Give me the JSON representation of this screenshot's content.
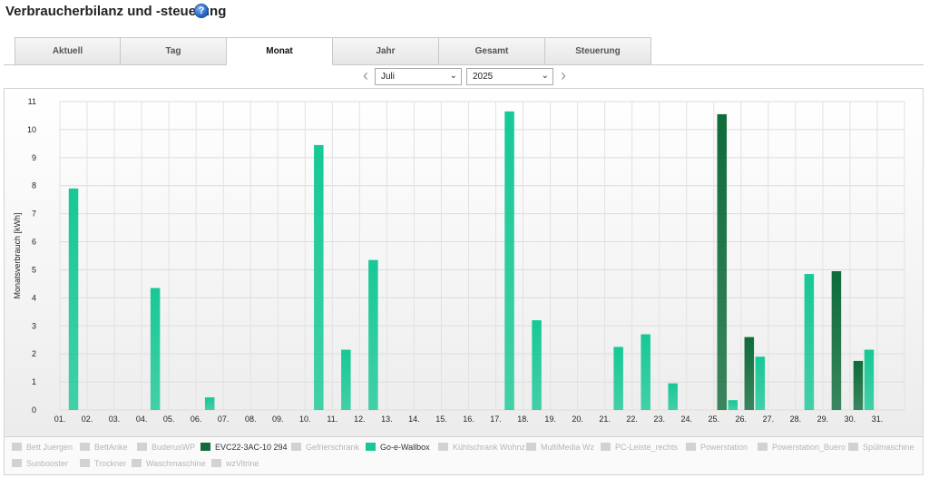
{
  "header": {
    "title": "Verbraucherbilanz und -steuerung",
    "help_glyph": "?"
  },
  "tabs": [
    {
      "label": "Aktuell",
      "active": false
    },
    {
      "label": "Tag",
      "active": false
    },
    {
      "label": "Monat",
      "active": true
    },
    {
      "label": "Jahr",
      "active": false
    },
    {
      "label": "Gesamt",
      "active": false
    },
    {
      "label": "Steuerung",
      "active": false
    }
  ],
  "period": {
    "month": "Juli",
    "year": "2025",
    "prev_glyph": "‹",
    "next_glyph": "›",
    "caret": "⌄"
  },
  "colors": {
    "evc": "#0e6b3a",
    "goe": "#17c896",
    "inactive": "#d2d2d2"
  },
  "chart_data": {
    "type": "bar",
    "ylabel": "Monatsverbrauch [kWh]",
    "xlabel": "",
    "ylim": [
      0,
      11
    ],
    "yticks": [
      "0",
      "1",
      "2",
      "3",
      "4",
      "5",
      "6",
      "7",
      "8",
      "9",
      "10",
      "11"
    ],
    "grid": true,
    "categories": [
      "01.",
      "02.",
      "03.",
      "04.",
      "05.",
      "06.",
      "07.",
      "08.",
      "09.",
      "10.",
      "11.",
      "12.",
      "13.",
      "14.",
      "15.",
      "16.",
      "17.",
      "18.",
      "19.",
      "20.",
      "21.",
      "22.",
      "23.",
      "24.",
      "25.",
      "26.",
      "27.",
      "28.",
      "29.",
      "30.",
      "31."
    ],
    "series": [
      {
        "name": "EVC22-3AC-10 294",
        "color": "#0e6b3a",
        "values": [
          0,
          0,
          0,
          0,
          0,
          0,
          0,
          0,
          0,
          0,
          0,
          0,
          0,
          0,
          0,
          0,
          0,
          0,
          0,
          0,
          0,
          0,
          0,
          0,
          10.55,
          2.6,
          0,
          0,
          4.95,
          1.75,
          0
        ]
      },
      {
        "name": "Go-e-Wallbox",
        "color": "#17c896",
        "values": [
          7.9,
          0,
          0,
          4.35,
          0,
          0.45,
          0,
          0,
          0,
          9.45,
          2.15,
          5.35,
          0,
          0,
          0,
          0,
          10.65,
          3.2,
          0,
          0,
          2.25,
          2.7,
          0.95,
          0,
          0.35,
          1.9,
          0,
          4.85,
          0,
          2.15,
          0
        ]
      }
    ]
  },
  "legend": {
    "items": [
      {
        "label": "Bett Juergen",
        "active": false
      },
      {
        "label": "BettAnke",
        "active": false
      },
      {
        "label": "BuderusWP",
        "active": false
      },
      {
        "label": "EVC22-3AC-10 294",
        "active": true,
        "color": "#0e6b3a"
      },
      {
        "label": "Gefrierschrank",
        "active": false
      },
      {
        "label": "Go-e-Wallbox",
        "active": true,
        "color": "#17c896"
      },
      {
        "label": "Kühlschrank Wohnz",
        "active": false
      },
      {
        "label": "MultiMedia Wz",
        "active": false
      },
      {
        "label": "PC-Leiste_rechts",
        "active": false
      },
      {
        "label": "Powerstation",
        "active": false
      },
      {
        "label": "Powerstation_Buero",
        "active": false
      },
      {
        "label": "Spülmaschine",
        "active": false
      },
      {
        "label": "Sunbooster",
        "active": false
      },
      {
        "label": "Trockner",
        "active": false
      },
      {
        "label": "Waschmaschine",
        "active": false
      },
      {
        "label": "wzVitrine",
        "active": false
      }
    ]
  }
}
